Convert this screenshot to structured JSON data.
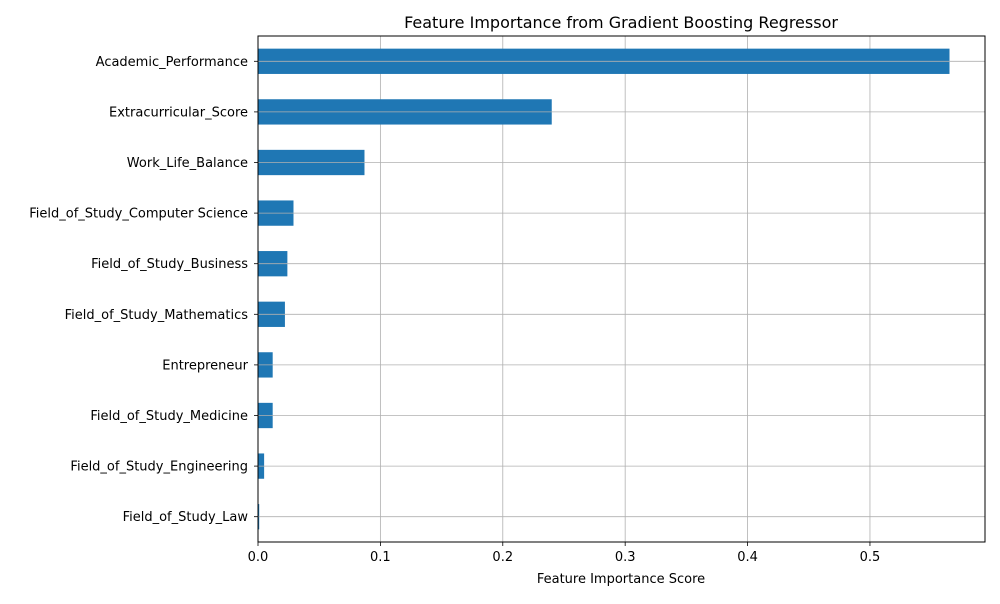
{
  "chart_data": {
    "type": "bar",
    "orientation": "horizontal",
    "title": "Feature Importance from Gradient Boosting Regressor",
    "xlabel": "Feature Importance Score",
    "ylabel": "",
    "categories": [
      "Academic_Performance",
      "Extracurricular_Score",
      "Work_Life_Balance",
      "Field_of_Study_Computer Science",
      "Field_of_Study_Business",
      "Field_of_Study_Mathematics",
      "Entrepreneur",
      "Field_of_Study_Medicine",
      "Field_of_Study_Engineering",
      "Field_of_Study_Law"
    ],
    "values": [
      0.565,
      0.24,
      0.087,
      0.029,
      0.024,
      0.022,
      0.012,
      0.012,
      0.005,
      0.001
    ],
    "xlim": [
      0,
      0.594
    ],
    "xticks": [
      0,
      0.1,
      0.2,
      0.3,
      0.4,
      0.5
    ],
    "xtick_labels": [
      "0.0",
      "0.1",
      "0.2",
      "0.3",
      "0.4",
      "0.5"
    ],
    "grid": true,
    "bar_color": "#1f77b4",
    "grid_color": "#b0b0b0"
  }
}
